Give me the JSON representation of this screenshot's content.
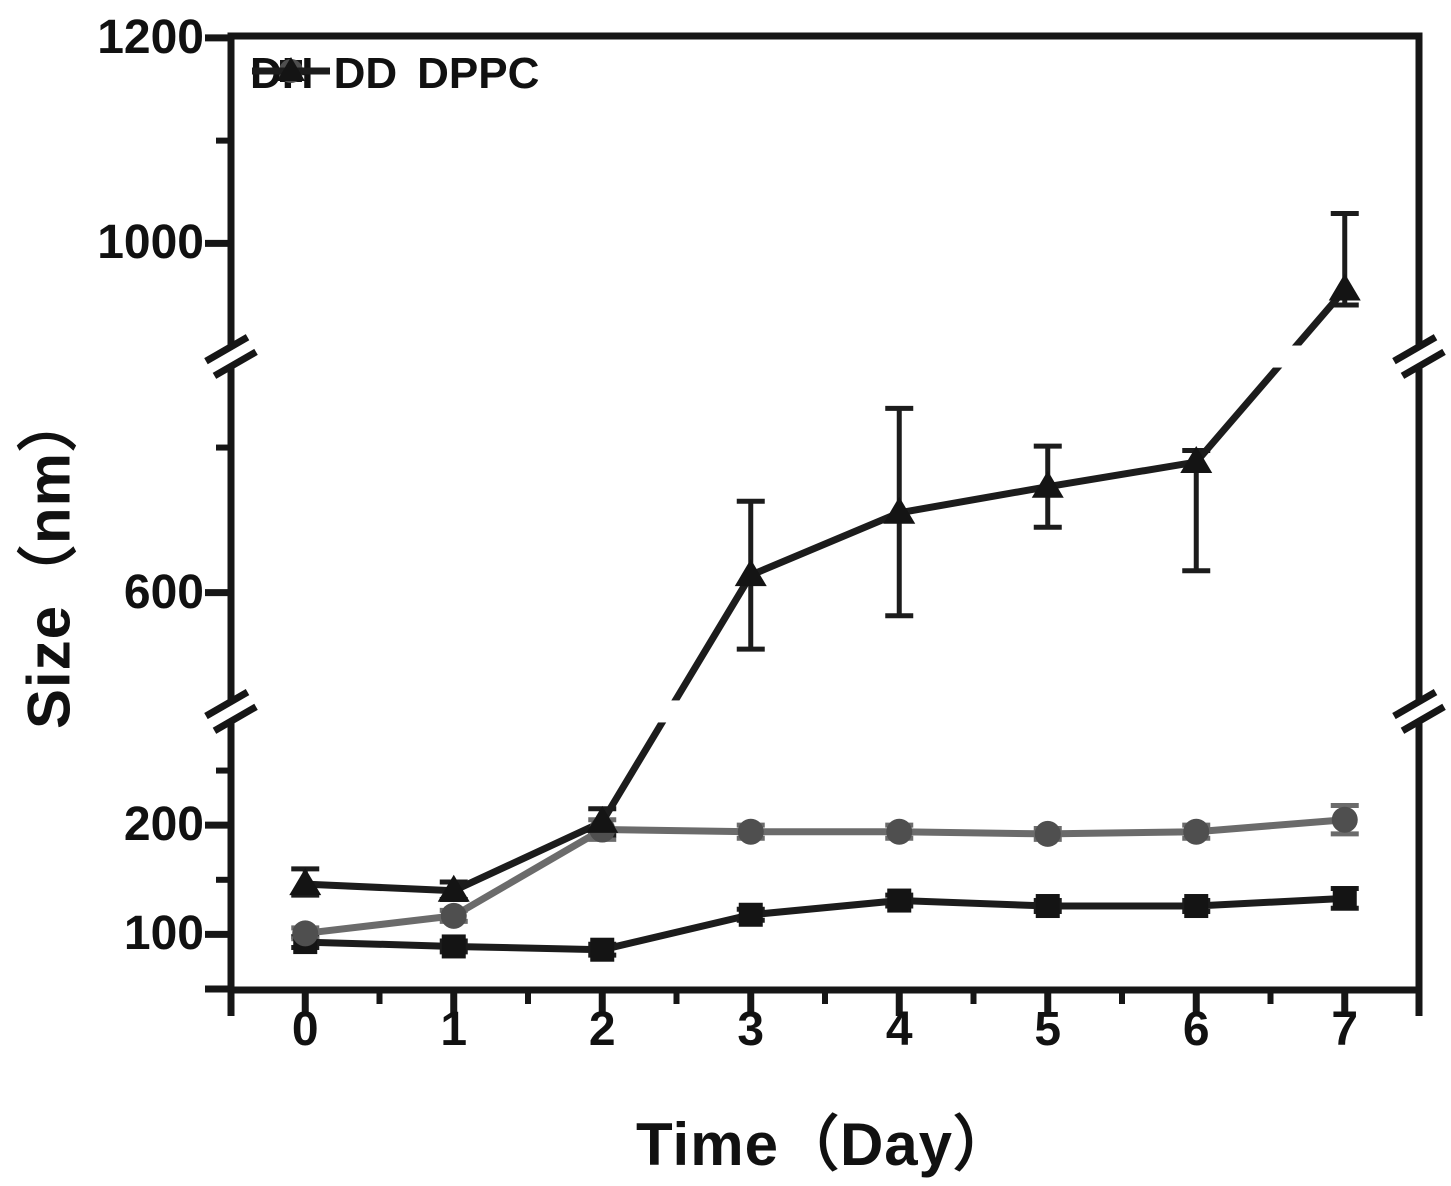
{
  "colors": {
    "axis": "#161616",
    "background": "#ffffff"
  },
  "chart_data": {
    "type": "line",
    "title": "",
    "xlabel": "Time（Day）",
    "ylabel": "Size（nm）",
    "grid": false,
    "legend_position": "top-left-inside",
    "x": [
      0,
      1,
      2,
      3,
      4,
      5,
      6,
      7
    ],
    "series": [
      {
        "name": "DH",
        "color": "#1c1c1c",
        "marker_color": "#141414",
        "marker": "square",
        "values": [
          93,
          89,
          86,
          118,
          131,
          126,
          126,
          133
        ],
        "err_up": [
          5,
          5,
          5,
          5,
          5,
          5,
          5,
          9
        ],
        "err_down": [
          5,
          5,
          5,
          5,
          5,
          5,
          5,
          9
        ]
      },
      {
        "name": "DD",
        "color": "#6b6b6b",
        "marker_color": "#4f4f4f",
        "marker": "circle",
        "values": [
          101,
          117,
          196,
          194,
          194,
          192,
          194,
          205
        ],
        "err_up": [
          5,
          5,
          9,
          6,
          6,
          5,
          6,
          13
        ],
        "err_down": [
          5,
          5,
          9,
          6,
          6,
          5,
          6,
          13
        ]
      },
      {
        "name": "DPPC",
        "color": "#1c1c1c",
        "marker_color": "#141414",
        "marker": "triangle",
        "values": [
          146,
          140,
          203,
          612,
          655,
          673,
          690,
          955
        ],
        "err_up": [
          14,
          8,
          12,
          51,
          72,
          28,
          8,
          74
        ],
        "err_down": [
          10,
          8,
          12,
          51,
          71,
          28,
          75,
          15
        ]
      }
    ],
    "x_axis": {
      "range": [
        -0.5,
        7.5
      ],
      "major_ticks": [
        0,
        1,
        2,
        3,
        4,
        5,
        6,
        7
      ],
      "tick_labels": [
        "0",
        "1",
        "2",
        "3",
        "4",
        "5",
        "6",
        "7"
      ],
      "minor_ticks": [
        0.5,
        1.5,
        2.5,
        3.5,
        4.5,
        5.5,
        6.5
      ],
      "edge_ticks": [
        -0.5,
        7.5
      ]
    },
    "y_axis": {
      "segments": [
        {
          "values": [
            50,
            305
          ],
          "fractions": [
            0.999,
            0.707
          ]
        },
        {
          "values": [
            520,
            770
          ],
          "fractions": [
            0.705,
            0.325
          ]
        },
        {
          "values": [
            900,
            1200
          ],
          "fractions": [
            0.325,
            0.002
          ]
        }
      ],
      "major_ticks": [
        100,
        200,
        600,
        1000,
        1200
      ],
      "major_tick_labels": [
        "100",
        "200",
        "600",
        "1000",
        "1200"
      ],
      "minor_ticks": [
        150,
        250,
        700,
        1100
      ],
      "edge_ticks": [
        50
      ],
      "breaks_fractions": [
        0.336,
        0.708
      ]
    }
  }
}
